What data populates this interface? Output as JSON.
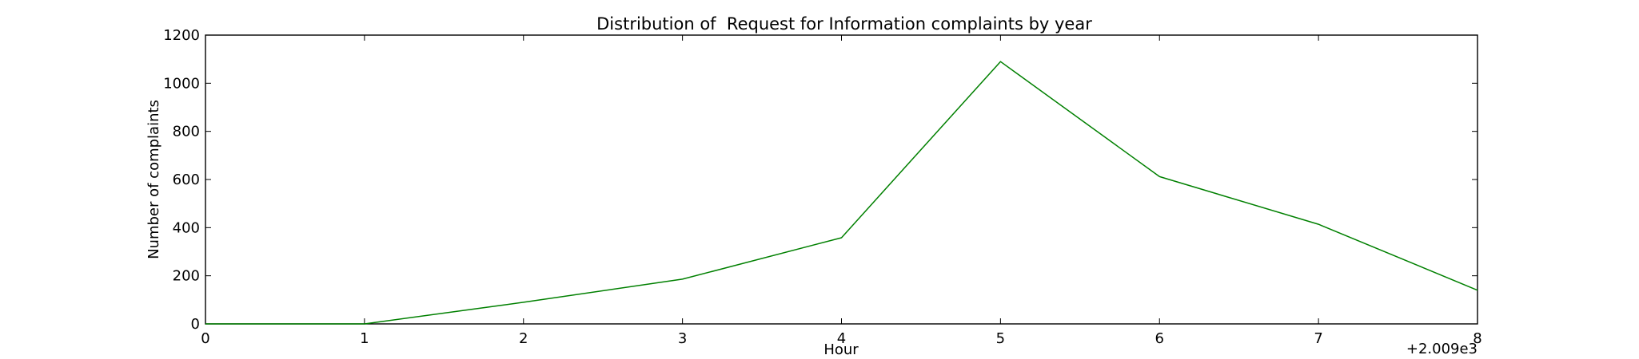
{
  "chart_data": {
    "type": "line",
    "title": "Distribution of  Request for Information complaints by year",
    "xlabel": "Hour",
    "ylabel": "Number of complaints",
    "x_offset_label": "+2.009e3",
    "xlim": [
      0,
      8
    ],
    "ylim": [
      0,
      1200
    ],
    "x_ticks": [
      0,
      1,
      2,
      3,
      4,
      5,
      6,
      7,
      8
    ],
    "y_ticks": [
      0,
      200,
      400,
      600,
      800,
      1000,
      1200
    ],
    "grid": false,
    "series": [
      {
        "color": "#008000",
        "x": [
          0,
          1,
          2,
          3,
          4,
          5,
          6,
          7,
          8
        ],
        "y": [
          0,
          0,
          90,
          186,
          358,
          1090,
          612,
          414,
          140
        ]
      }
    ]
  }
}
